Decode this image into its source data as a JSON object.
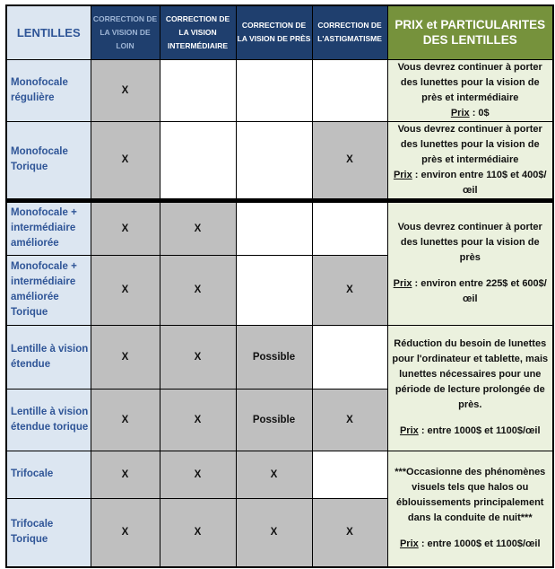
{
  "headers": {
    "lentilles": "LENTILLES",
    "loin": "CORRECTION DE LA VISION DE LOIN",
    "intermediaire": "CORRECTION DE LA VISION INTERMÉDIAIRE",
    "pres": "CORRECTION DE LA VISION DE PRÈS",
    "astig": "CORRECTION DE L'ASTIGMATISME",
    "prix": "PRIX et PARTICULARITES DES LENTILLES"
  },
  "rows": [
    {
      "label": "Monofocale régulière",
      "loin": "X",
      "inter": "",
      "pres": "",
      "astig": ""
    },
    {
      "label": "Monofocale Torique",
      "loin": "X",
      "inter": "",
      "pres": "",
      "astig": "X"
    },
    {
      "label": "Monofocale + intermédiaire améliorée",
      "loin": "X",
      "inter": "X",
      "pres": "",
      "astig": ""
    },
    {
      "label": "Monofocale + intermédiaire améliorée Torique",
      "loin": "X",
      "inter": "X",
      "pres": "",
      "astig": "X"
    },
    {
      "label": "Lentille à vision étendue",
      "loin": "X",
      "inter": "X",
      "pres": "Possible",
      "astig": ""
    },
    {
      "label": "Lentille à vision étendue torique",
      "loin": "X",
      "inter": "X",
      "pres": "Possible",
      "astig": "X"
    },
    {
      "label": "Trifocale",
      "loin": "X",
      "inter": "X",
      "pres": "X",
      "astig": ""
    },
    {
      "label": "Trifocale Torique",
      "loin": "X",
      "inter": "X",
      "pres": "X",
      "astig": "X"
    }
  ],
  "prices": [
    {
      "text": "Vous devrez continuer à porter des lunettes pour la vision de près et intermédiaire",
      "prix_label": "Prix",
      "prix_value": " : 0$"
    },
    {
      "text": "Vous devrez continuer à porter des lunettes pour la vision de près et intermédiaire",
      "prix_label": "Prix",
      "prix_value": " : environ entre 110$ et 400$/œil"
    },
    {
      "text": "Vous devrez continuer à porter des lunettes pour la vision de près",
      "prix_label": "Prix",
      "prix_value": " : environ entre 225$ et 600$/œil"
    },
    {
      "text": "Réduction du besoin de lunettes pour l'ordinateur et tablette, mais lunettes nécessaires pour une période de lecture prolongée de près.",
      "prix_label": "Prix",
      "prix_value": " : entre 1000$ et 1100$/œil"
    },
    {
      "text": "***Occasionne des phénomènes visuels tels que halos ou éblouissements principalement dans la conduite de nuit***",
      "prix_label": "Prix",
      "prix_value": " : entre 1000$ et 1100$/œil"
    }
  ],
  "colors": {
    "header_blue": "#1f3f6e",
    "header_green": "#76923c",
    "label_bg": "#dce6f1",
    "marked_grey": "#bfbfbf",
    "price_bg": "#ebf1de"
  }
}
